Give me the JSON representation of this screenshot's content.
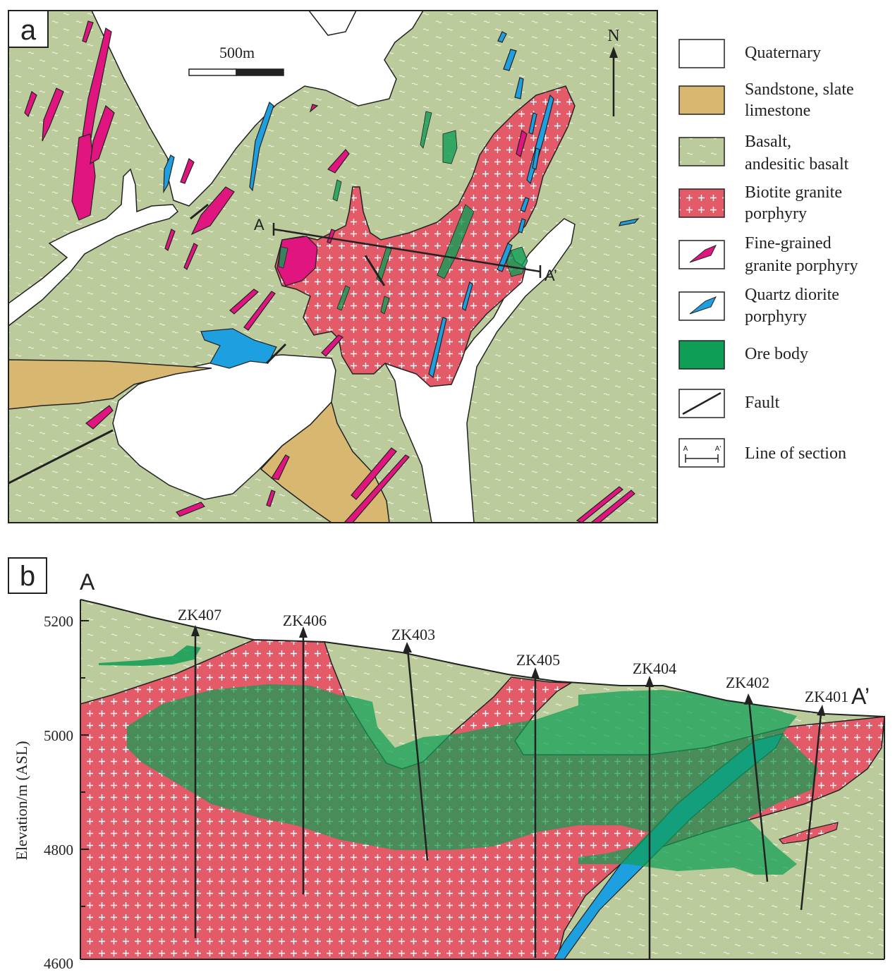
{
  "panels": {
    "a": {
      "label": "a",
      "scale_bar_label": "500m",
      "north_label": "N",
      "section_start": "A",
      "section_end": "A’"
    },
    "b": {
      "label": "b",
      "section_start": "A",
      "section_end": "A’",
      "y_axis_title": "Elevation/m (ASL)",
      "y_ticks": [
        "5200",
        "5000",
        "4800",
        "4600"
      ],
      "drill_holes": [
        "ZK407",
        "ZK406",
        "ZK403",
        "ZK405",
        "ZK404",
        "ZK402",
        "ZK401"
      ]
    }
  },
  "legend": {
    "items": [
      {
        "key": "quaternary",
        "lines": [
          "Quaternary"
        ],
        "color": "#ffffff"
      },
      {
        "key": "sandstone",
        "lines": [
          "Sandstone, slate",
          "limestone"
        ],
        "color": "#d8b870"
      },
      {
        "key": "basalt",
        "lines": [
          "Basalt,",
          "andesitic basalt"
        ],
        "color": "#bccb9c"
      },
      {
        "key": "biotite-granite",
        "lines": [
          "Biotite granite",
          "porphyry"
        ],
        "color": "#e35a69"
      },
      {
        "key": "fine-grained-granite",
        "lines": [
          "Fine-grained",
          "granite porphyry"
        ],
        "color": "#e0157f"
      },
      {
        "key": "quartz-diorite",
        "lines": [
          "Quartz diorite",
          "porphyry"
        ],
        "color": "#1e9fe0"
      },
      {
        "key": "ore-body",
        "lines": [
          "Ore body"
        ],
        "color": "#0f9e55"
      },
      {
        "key": "fault",
        "lines": [
          "Fault"
        ]
      },
      {
        "key": "line-of-section",
        "lines": [
          "Line of section"
        ],
        "icon_labels": [
          "A",
          "A'"
        ]
      }
    ]
  },
  "colors": {
    "basalt": "#bccb9c",
    "granite": "#e35a69",
    "fine_granite": "#e0157f",
    "diorite": "#1e9fe0",
    "ore": "#0f9e55",
    "sandstone": "#d8b870",
    "outline": "#222222"
  }
}
